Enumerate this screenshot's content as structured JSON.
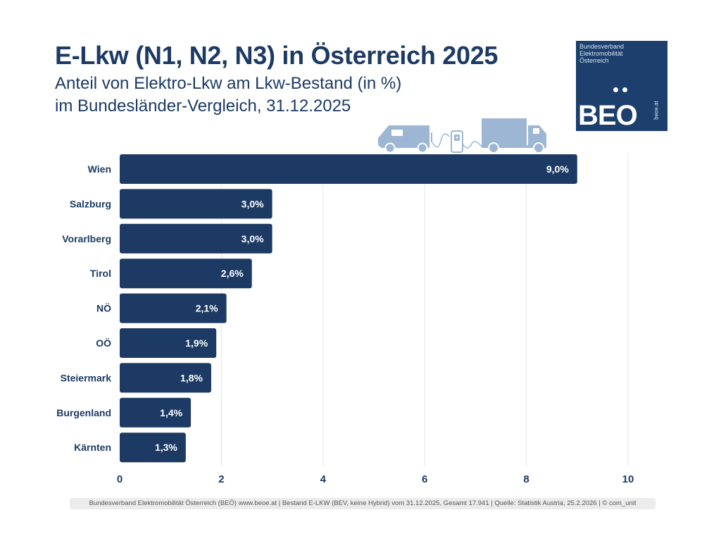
{
  "header": {
    "title": "E-Lkw (N1, N2, N3) in Österreich 2025",
    "subtitle_line1": "Anteil von Elektro-Lkw am Lkw-Bestand (in %)",
    "subtitle_line2": "im Bundesländer-Vergleich, 31.12.2025"
  },
  "logo": {
    "org_name": "Bundesverband\nElektromobilität\nÖsterreich",
    "mark": "BEO",
    "url": "beoe.at",
    "color": "#1c3f6e"
  },
  "illustration": {
    "icons": [
      "van-icon",
      "charging-station-icon",
      "truck-icon"
    ],
    "color": "#9db6d3"
  },
  "chart_data": {
    "type": "bar",
    "orientation": "horizontal",
    "title": "E-Lkw (N1, N2, N3) in Österreich 2025",
    "xlabel": "",
    "ylabel": "",
    "categories": [
      "Wien",
      "Salzburg",
      "Vorarlberg",
      "Tirol",
      "NÖ",
      "OÖ",
      "Steiermark",
      "Burgenland",
      "Kärnten"
    ],
    "values": [
      9.0,
      3.0,
      3.0,
      2.6,
      2.1,
      1.9,
      1.8,
      1.4,
      1.3
    ],
    "data_labels": [
      "9,0%",
      "3,0%",
      "3,0%",
      "2,6%",
      "2,1%",
      "1,9%",
      "1,8%",
      "1,4%",
      "1,3%"
    ],
    "xlim": [
      0,
      10
    ],
    "xticks": [
      0,
      2,
      4,
      6,
      8,
      10
    ],
    "xtick_labels": [
      "0",
      "2",
      "4",
      "6",
      "8",
      "10"
    ],
    "grid": true,
    "legend": "none",
    "bar_color": "#1c3a64"
  },
  "footer": {
    "text": "Bundesverband Elektromobilität Österreich (BEÖ) www.beoe.at | Bestand E-LKW (BEV, keine Hybrid) vom 31.12.2025, Gesamt 17.941 | Quelle: Statistik Austria, 25.2.2026 | © com_unit"
  }
}
